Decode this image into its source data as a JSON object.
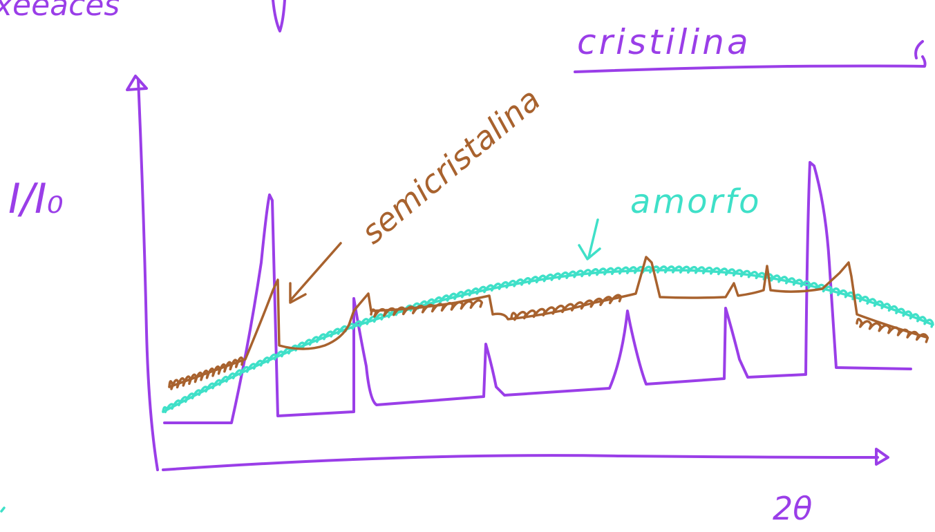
{
  "colors": {
    "purple": "#9a3ee8",
    "brown": "#a8622e",
    "cyan": "#3fe0c8"
  },
  "labels": {
    "top_left_fragment": "xeeaces",
    "top_right_title": "cristilina",
    "brown_label": "semicristalina",
    "cyan_label": "amorfo",
    "y_axis": "I/I₀",
    "x_axis": "2θ"
  }
}
